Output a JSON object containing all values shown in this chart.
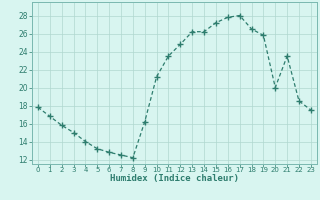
{
  "x": [
    0,
    1,
    2,
    3,
    4,
    5,
    6,
    7,
    8,
    9,
    10,
    11,
    12,
    13,
    14,
    15,
    16,
    17,
    18,
    19,
    20,
    21,
    22,
    23
  ],
  "y": [
    17.8,
    16.8,
    15.8,
    15.0,
    14.0,
    13.2,
    12.8,
    12.5,
    12.2,
    16.2,
    21.2,
    23.5,
    24.8,
    26.2,
    26.2,
    27.2,
    27.8,
    28.0,
    26.5,
    25.8,
    20.0,
    23.5,
    18.5,
    17.5
  ],
  "xlabel": "Humidex (Indice chaleur)",
  "ylim": [
    11.5,
    29.5
  ],
  "xlim": [
    -0.5,
    23.5
  ],
  "yticks": [
    12,
    14,
    16,
    18,
    20,
    22,
    24,
    26,
    28
  ],
  "xticks": [
    0,
    1,
    2,
    3,
    4,
    5,
    6,
    7,
    8,
    9,
    10,
    11,
    12,
    13,
    14,
    15,
    16,
    17,
    18,
    19,
    20,
    21,
    22,
    23
  ],
  "line_color": "#2e7d6e",
  "marker_color": "#2e7d6e",
  "bg_color": "#d8f5f0",
  "grid_color": "#b0d8d0",
  "xlabel_color": "#2e7d6e",
  "tick_color": "#2e7d6e",
  "spine_color": "#7ab8b0"
}
